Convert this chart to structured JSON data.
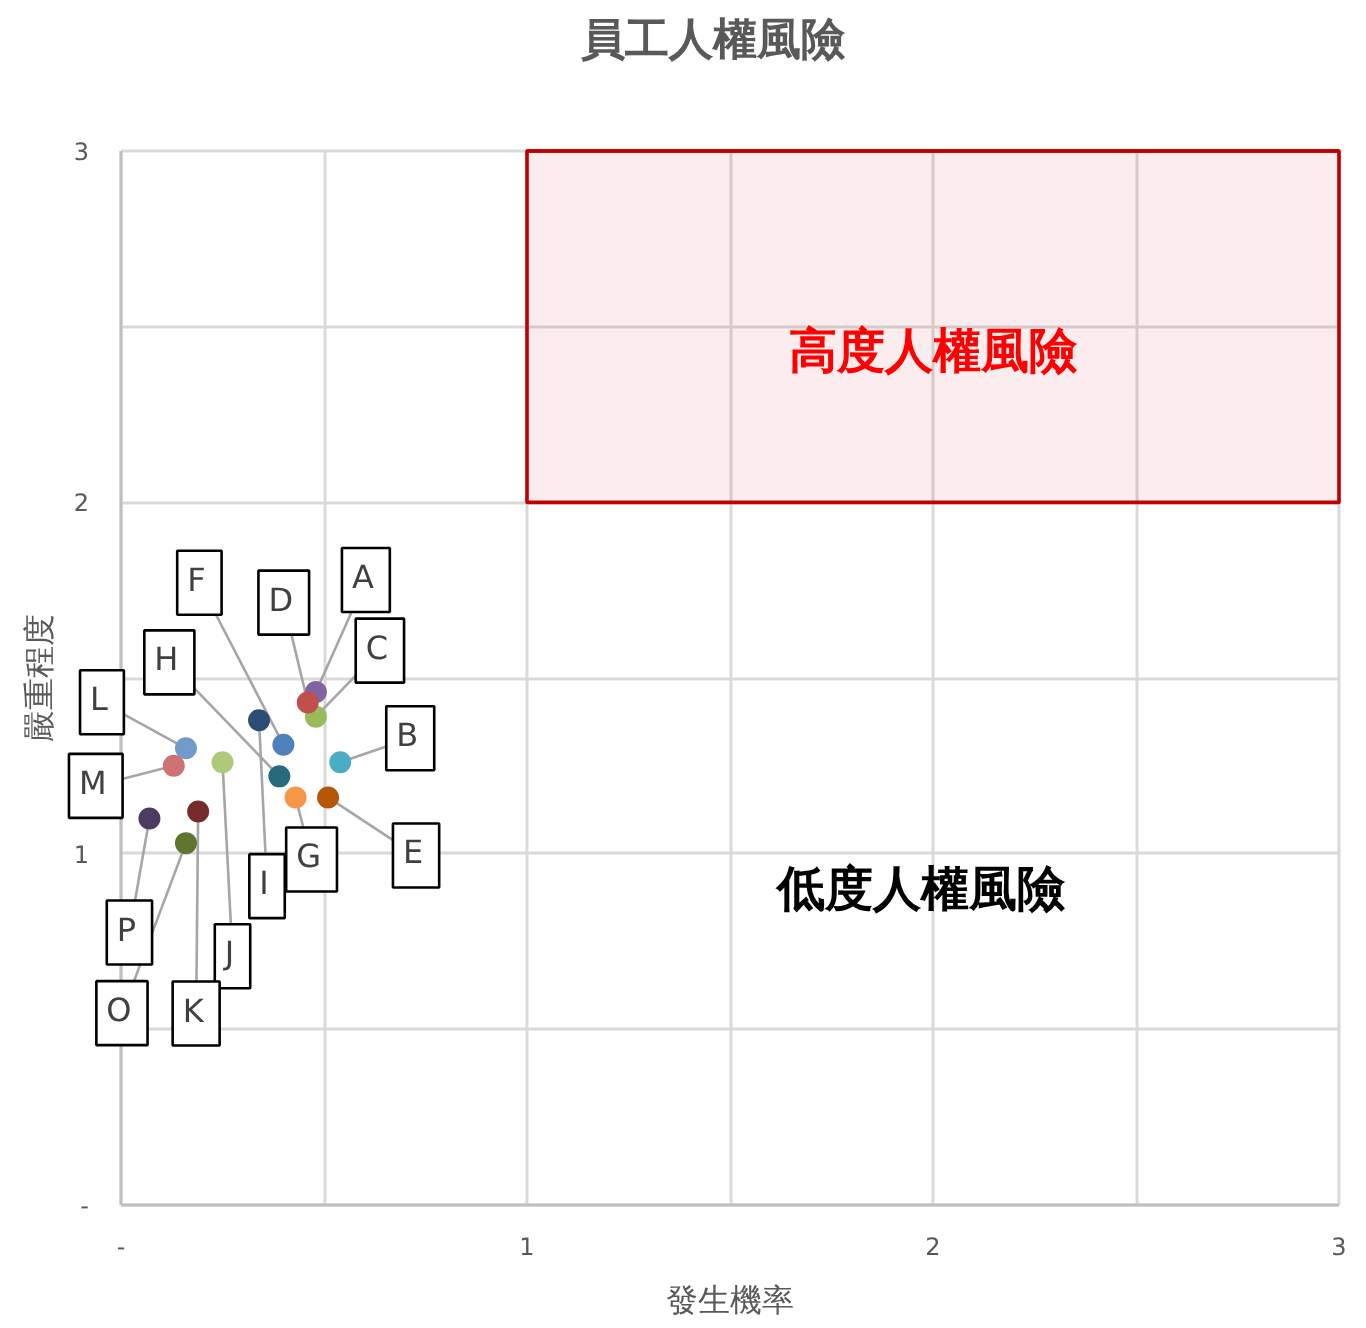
{
  "chart_data": {
    "type": "scatter",
    "title": "員工人權風險",
    "xlabel": "發生機率",
    "ylabel": "嚴重程度",
    "xlim": [
      0,
      3
    ],
    "ylim": [
      0,
      3
    ],
    "xticks": [
      {
        "value": 0,
        "label": "-"
      },
      {
        "value": 0.5,
        "label": null
      },
      1,
      {
        "value": 1.5,
        "label": null
      },
      2,
      {
        "value": 2.5,
        "label": null
      },
      3
    ],
    "yticks": [
      {
        "value": 0,
        "label": "-"
      },
      {
        "value": 0.5,
        "label": null
      },
      1,
      {
        "value": 1.5,
        "label": null
      },
      2,
      {
        "value": 2.5,
        "label": null
      },
      3
    ],
    "grid": true,
    "legend": false,
    "marker": "circle",
    "series": [
      {
        "type": "line",
        "color": "#c00000",
        "marker": "none",
        "x": [
          1,
          3
        ],
        "values": [
          3,
          3
        ],
        "lower": [
          2,
          2
        ],
        "upper": [
          3,
          3
        ]
      },
      {
        "name": "A",
        "color": "#8064a2",
        "x": [
          0.48
        ],
        "values": [
          1.46
        ]
      },
      {
        "name": "B",
        "color": "#4bacc6",
        "x": [
          0.54
        ],
        "values": [
          1.26
        ]
      },
      {
        "name": "C",
        "color": "#9bbb59",
        "x": [
          0.48
        ],
        "values": [
          1.39
        ]
      },
      {
        "name": "D",
        "color": "#c0504d",
        "x": [
          0.46
        ],
        "values": [
          1.43
        ]
      },
      {
        "name": "E",
        "color": "#b65708",
        "x": [
          0.51
        ],
        "values": [
          1.16
        ]
      },
      {
        "name": "F",
        "color": "#4f81bd",
        "x": [
          0.4
        ],
        "values": [
          1.31
        ]
      },
      {
        "name": "G",
        "color": "#f79646",
        "x": [
          0.43
        ],
        "values": [
          1.16
        ]
      },
      {
        "name": "H",
        "color": "#276a7c",
        "x": [
          0.39
        ],
        "values": [
          1.22
        ]
      },
      {
        "name": "I",
        "color": "#2c4d75",
        "x": [
          0.34
        ],
        "values": [
          1.38
        ]
      },
      {
        "name": "J",
        "color": "#afc97a",
        "x": [
          0.25
        ],
        "values": [
          1.26
        ]
      },
      {
        "name": "K",
        "color": "#772c2a",
        "x": [
          0.19
        ],
        "values": [
          1.12
        ]
      },
      {
        "name": "L",
        "color": "#729aca",
        "x": [
          0.16
        ],
        "values": [
          1.3
        ]
      },
      {
        "name": "M",
        "color": "#cd7371",
        "x": [
          0.13
        ],
        "values": [
          1.25
        ]
      },
      {
        "name": "O",
        "color": "#5f7530",
        "x": [
          0.16
        ],
        "values": [
          1.03
        ]
      },
      {
        "name": "P",
        "color": "#4d3b62",
        "x": [
          0.07
        ],
        "values": [
          1.1
        ]
      }
    ],
    "annotations": [
      "高度人權風險",
      "低度人權風險"
    ]
  }
}
